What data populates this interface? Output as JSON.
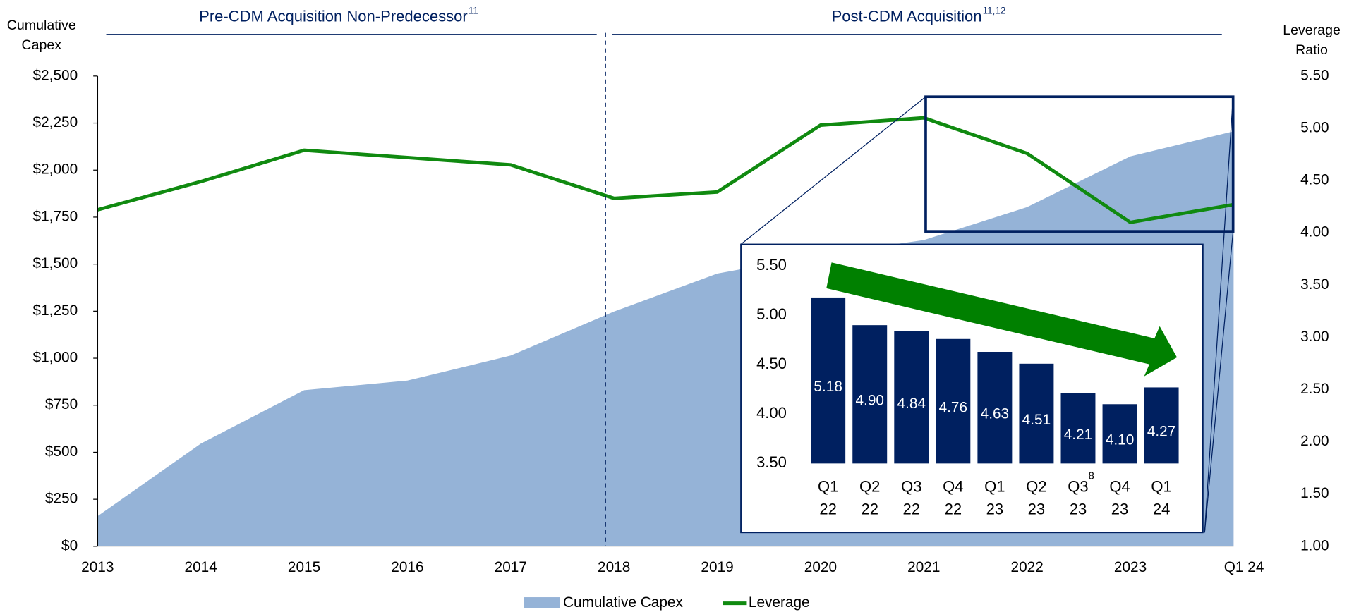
{
  "chart_data": [
    {
      "type": "area_line",
      "header_left": "Pre-CDM Acquisition Non-Predecessor",
      "header_left_note": "11",
      "header_right": "Post-CDM Acquisition",
      "header_right_note": "11,12",
      "ylabel": "Cumulative Capex",
      "y2label": "Leverage Ratio",
      "categories": [
        "2013",
        "2014",
        "2015",
        "2016",
        "2017",
        "2018",
        "2019",
        "2020",
        "2021",
        "2022",
        "2023",
        "Q1 24"
      ],
      "series": [
        {
          "name": "Cumulative Capex",
          "color": "#95b3d7",
          "kind": "area",
          "values": [
            160,
            546,
            830,
            881,
            1014,
            1248,
            1450,
            1550,
            1628,
            1803,
            2073,
            2206
          ]
        },
        {
          "name": "Leverage",
          "color": "#108a10",
          "kind": "line",
          "axis": "y2",
          "values": [
            4.22,
            4.49,
            4.79,
            4.72,
            4.65,
            4.33,
            4.39,
            5.03,
            5.1,
            4.76,
            4.1,
            4.27
          ]
        }
      ],
      "ylim": [
        0,
        2500
      ],
      "yticks": [
        {
          "value": 0,
          "label": "$0"
        },
        {
          "value": 250,
          "label": "$250"
        },
        {
          "value": 500,
          "label": "$500"
        },
        {
          "value": 750,
          "label": "$750"
        },
        {
          "value": 1000,
          "label": "$1,000"
        },
        {
          "value": 1250,
          "label": "$1,250"
        },
        {
          "value": 1500,
          "label": "$1,500"
        },
        {
          "value": 1750,
          "label": "$1,750"
        },
        {
          "value": 2000,
          "label": "$2,000"
        },
        {
          "value": 2250,
          "label": "$2,250"
        },
        {
          "value": 2500,
          "label": "$2,500"
        }
      ],
      "y2lim": [
        1,
        5.5
      ],
      "y2ticks": [
        {
          "value": 1,
          "label": "1.00"
        },
        {
          "value": 1.5,
          "label": "1.50"
        },
        {
          "value": 2,
          "label": "2.00"
        },
        {
          "value": 2.5,
          "label": "2.50"
        },
        {
          "value": 3,
          "label": "3.00"
        },
        {
          "value": 3.5,
          "label": "3.50"
        },
        {
          "value": 4,
          "label": "4.00"
        },
        {
          "value": 4.5,
          "label": "4.50"
        },
        {
          "value": 5,
          "label": "5.00"
        },
        {
          "value": 5.5,
          "label": "5.50"
        }
      ],
      "legend": "bottom"
    },
    {
      "type": "bar",
      "color": "#002060",
      "categories": [
        "Q1 22",
        "Q2 22",
        "Q3 22",
        "Q4 22",
        "Q1 23",
        "Q2 23",
        "Q3 23",
        "Q4 23",
        "Q1 24"
      ],
      "values": [
        5.18,
        4.9,
        4.84,
        4.76,
        4.63,
        4.51,
        4.21,
        4.1,
        4.27
      ],
      "value_labels": [
        "5.18",
        "4.90",
        "4.84",
        "4.76",
        "4.63",
        "4.51",
        "4.21",
        "4.10",
        "4.27"
      ],
      "note": "8",
      "ylim": [
        3.5,
        5.5
      ],
      "yticks": [
        {
          "value": 3.5,
          "label": "3.50"
        },
        {
          "value": 4,
          "label": "4.00"
        },
        {
          "value": 4.5,
          "label": "4.50"
        },
        {
          "value": 5,
          "label": "5.00"
        },
        {
          "value": 5.5,
          "label": "5.50"
        }
      ]
    }
  ]
}
